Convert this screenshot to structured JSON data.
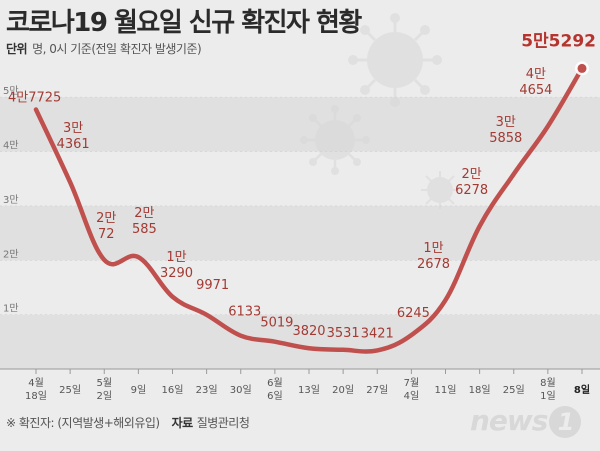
{
  "title": "코로나19 월요일 신규 확진자 현황",
  "unit_label": "단위",
  "unit_text": "명, 0시 기준(전일 확진자 발생기준)",
  "footnote": "※ 확진자: (지역발생+해외유입)",
  "source_label": "자료",
  "source": "질병관리청",
  "logo_text": "news",
  "logo_mark": "1",
  "colors": {
    "line": "#c0504d",
    "label": "#a33b34",
    "background": "#ececec",
    "band": "#e0e0e0"
  },
  "chart_data": {
    "type": "line",
    "title": "코로나19 월요일 신규 확진자 현황",
    "categories": [
      [
        "4월",
        "18일"
      ],
      [
        "25일"
      ],
      [
        "5월",
        "2일"
      ],
      [
        "9일"
      ],
      [
        "16일"
      ],
      [
        "23일"
      ],
      [
        "30일"
      ],
      [
        "6월",
        "6일"
      ],
      [
        "13일"
      ],
      [
        "20일"
      ],
      [
        "27일"
      ],
      [
        "7월",
        "4일"
      ],
      [
        "11일"
      ],
      [
        "18일"
      ],
      [
        "25일"
      ],
      [
        "8월",
        "1일"
      ],
      [
        "8일"
      ]
    ],
    "values": [
      47725,
      34361,
      20072,
      20585,
      13290,
      9971,
      6133,
      5019,
      3820,
      3531,
      3421,
      6245,
      12678,
      26278,
      35858,
      44654,
      55292
    ],
    "point_labels": [
      [
        "4만7725"
      ],
      [
        "3만",
        "4361"
      ],
      [
        "2만",
        "72"
      ],
      [
        "2만",
        "585"
      ],
      [
        "1만",
        "3290"
      ],
      [
        "9971"
      ],
      [
        "6133"
      ],
      [
        "5019"
      ],
      [
        "3820"
      ],
      [
        "3531"
      ],
      [
        "3421"
      ],
      [
        "6245"
      ],
      [
        "1만",
        "2678"
      ],
      [
        "2만",
        "6278"
      ],
      [
        "3만",
        "5858"
      ],
      [
        "4만",
        "4654"
      ],
      [
        "5만5292"
      ]
    ],
    "yticks": [
      {
        "v": 10000,
        "label": "1만"
      },
      {
        "v": 20000,
        "label": "2만"
      },
      {
        "v": 30000,
        "label": "3만"
      },
      {
        "v": 40000,
        "label": "4만"
      },
      {
        "v": 50000,
        "label": "5만"
      }
    ],
    "ylim": [
      0,
      55000
    ],
    "grid": "alternating horizontal bands"
  }
}
